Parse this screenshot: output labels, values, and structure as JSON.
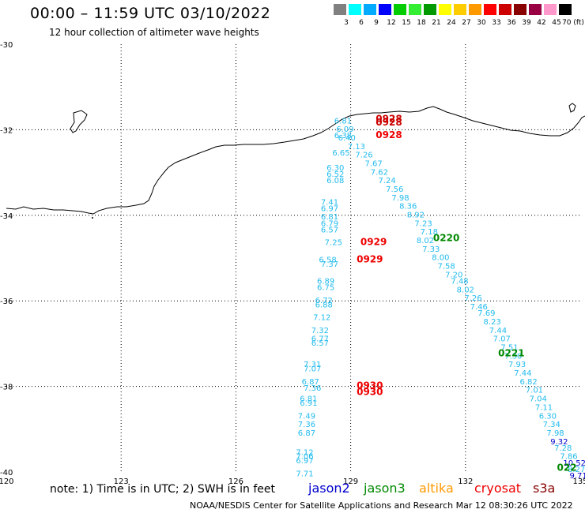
{
  "header": {
    "title": "00:00 – 11:59 UTC 03/10/2022",
    "subtitle": "12 hour collection of altimeter wave heights"
  },
  "legend": {
    "bins": [
      {
        "label": "3",
        "color": "#808080"
      },
      {
        "label": "6",
        "color": "#00ffff"
      },
      {
        "label": "9",
        "color": "#00aaff"
      },
      {
        "label": "12",
        "color": "#0000ff"
      },
      {
        "label": "15",
        "color": "#00cc00"
      },
      {
        "label": "18",
        "color": "#33ee33"
      },
      {
        "label": "21",
        "color": "#009900"
      },
      {
        "label": "24",
        "color": "#ffff00"
      },
      {
        "label": "27",
        "color": "#ffcc00"
      },
      {
        "label": "30",
        "color": "#ff9900"
      },
      {
        "label": "33",
        "color": "#ff0000"
      },
      {
        "label": "36",
        "color": "#cc0000"
      },
      {
        "label": "39",
        "color": "#880000"
      },
      {
        "label": "42",
        "color": "#990044"
      },
      {
        "label": "45",
        "color": "#ff99cc"
      },
      {
        "label": "70 (ft)",
        "color": "#000000"
      }
    ]
  },
  "map": {
    "lon_ticks": [
      "120",
      "123",
      "126",
      "129",
      "132",
      "135"
    ],
    "lat_ticks": [
      "-30",
      "-32",
      "-34",
      "-36",
      "-38",
      "-40"
    ],
    "pass_times": [
      {
        "text": "0928",
        "lon": 130.0,
        "lat": -31.82,
        "color": "#cc0000"
      },
      {
        "text": "0928",
        "lon": 130.0,
        "lat": -31.9,
        "color": "#cc0000"
      },
      {
        "text": "0928",
        "lon": 130.0,
        "lat": -32.2,
        "color": "#ee0000"
      },
      {
        "text": "0929",
        "lon": 129.6,
        "lat": -34.7,
        "color": "#ee0000"
      },
      {
        "text": "0929",
        "lon": 129.5,
        "lat": -35.1,
        "color": "#ee0000"
      },
      {
        "text": "0220",
        "lon": 131.5,
        "lat": -34.6,
        "color": "#008800"
      },
      {
        "text": "0221",
        "lon": 133.2,
        "lat": -37.3,
        "color": "#008800"
      },
      {
        "text": "0930",
        "lon": 129.5,
        "lat": -38.05,
        "color": "#ee0000"
      },
      {
        "text": "0930",
        "lon": 129.5,
        "lat": -38.2,
        "color": "#ee0000"
      },
      {
        "text": "022",
        "lon": 134.65,
        "lat": -39.97,
        "color": "#008800"
      }
    ],
    "wave_heights": [
      {
        "text": "6.81",
        "lon": 128.8,
        "lat": -31.85,
        "color": "#22bbee"
      },
      {
        "text": "6.09",
        "lon": 128.85,
        "lat": -32.05,
        "color": "#22bbee"
      },
      {
        "text": "6.38",
        "lon": 128.8,
        "lat": -32.2,
        "color": "#22bbee"
      },
      {
        "text": "6.40",
        "lon": 128.9,
        "lat": -32.25,
        "color": "#22bbee"
      },
      {
        "text": "7.13",
        "lon": 129.15,
        "lat": -32.45,
        "color": "#22bbee"
      },
      {
        "text": "6.65",
        "lon": 128.75,
        "lat": -32.6,
        "color": "#22bbee"
      },
      {
        "text": "7.26",
        "lon": 129.35,
        "lat": -32.65,
        "color": "#22bbee"
      },
      {
        "text": "7.67",
        "lon": 129.6,
        "lat": -32.85,
        "color": "#22bbee"
      },
      {
        "text": "6.30",
        "lon": 128.6,
        "lat": -32.95,
        "color": "#22bbee"
      },
      {
        "text": "7.62",
        "lon": 129.75,
        "lat": -33.05,
        "color": "#22bbee"
      },
      {
        "text": "6.52",
        "lon": 128.6,
        "lat": -33.1,
        "color": "#22bbee"
      },
      {
        "text": "6.08",
        "lon": 128.6,
        "lat": -33.25,
        "color": "#22bbee"
      },
      {
        "text": "7.24",
        "lon": 129.95,
        "lat": -33.25,
        "color": "#22bbee"
      },
      {
        "text": "7.56",
        "lon": 130.15,
        "lat": -33.45,
        "color": "#22bbee"
      },
      {
        "text": "7.98",
        "lon": 130.3,
        "lat": -33.65,
        "color": "#22bbee"
      },
      {
        "text": "7.41",
        "lon": 128.45,
        "lat": -33.75,
        "color": "#22bbee"
      },
      {
        "text": "8.36",
        "lon": 130.5,
        "lat": -33.85,
        "color": "#22bbee"
      },
      {
        "text": "6.97",
        "lon": 128.45,
        "lat": -33.9,
        "color": "#22bbee"
      },
      {
        "text": "8.92",
        "lon": 130.7,
        "lat": -34.05,
        "color": "#22bbee"
      },
      {
        "text": "6.81",
        "lon": 128.45,
        "lat": -34.1,
        "color": "#22bbee"
      },
      {
        "text": "6.79",
        "lon": 128.45,
        "lat": -34.25,
        "color": "#22bbee"
      },
      {
        "text": "7.23",
        "lon": 130.9,
        "lat": -34.25,
        "color": "#22bbee"
      },
      {
        "text": "6.57",
        "lon": 128.45,
        "lat": -34.4,
        "color": "#22bbee"
      },
      {
        "text": "7.18",
        "lon": 131.05,
        "lat": -34.45,
        "color": "#22bbee"
      },
      {
        "text": "8.02",
        "lon": 130.95,
        "lat": -34.65,
        "color": "#22bbee"
      },
      {
        "text": "7.25",
        "lon": 128.55,
        "lat": -34.7,
        "color": "#22bbee"
      },
      {
        "text": "7.33",
        "lon": 131.1,
        "lat": -34.85,
        "color": "#22bbee"
      },
      {
        "text": "8.00",
        "lon": 131.35,
        "lat": -35.05,
        "color": "#22bbee"
      },
      {
        "text": "6.58",
        "lon": 128.4,
        "lat": -35.1,
        "color": "#22bbee"
      },
      {
        "text": "7.37",
        "lon": 128.45,
        "lat": -35.2,
        "color": "#22bbee"
      },
      {
        "text": "7.58",
        "lon": 131.5,
        "lat": -35.25,
        "color": "#22bbee"
      },
      {
        "text": "7.20",
        "lon": 131.7,
        "lat": -35.45,
        "color": "#22bbee"
      },
      {
        "text": "6.89",
        "lon": 128.35,
        "lat": -35.6,
        "color": "#22bbee"
      },
      {
        "text": "7.48",
        "lon": 131.85,
        "lat": -35.6,
        "color": "#22bbee"
      },
      {
        "text": "6.75",
        "lon": 128.35,
        "lat": -35.75,
        "color": "#22bbee"
      },
      {
        "text": "8.02",
        "lon": 132.0,
        "lat": -35.8,
        "color": "#22bbee"
      },
      {
        "text": "7.26",
        "lon": 132.2,
        "lat": -36.0,
        "color": "#22bbee"
      },
      {
        "text": "6.72",
        "lon": 128.3,
        "lat": -36.05,
        "color": "#22bbee"
      },
      {
        "text": "6.88",
        "lon": 128.3,
        "lat": -36.15,
        "color": "#22bbee"
      },
      {
        "text": "7.46",
        "lon": 132.35,
        "lat": -36.2,
        "color": "#22bbee"
      },
      {
        "text": "7.69",
        "lon": 132.55,
        "lat": -36.35,
        "color": "#22bbee"
      },
      {
        "text": "7.12",
        "lon": 128.25,
        "lat": -36.45,
        "color": "#22bbee"
      },
      {
        "text": "8.23",
        "lon": 132.7,
        "lat": -36.55,
        "color": "#22bbee"
      },
      {
        "text": "7.32",
        "lon": 128.2,
        "lat": -36.75,
        "color": "#22bbee"
      },
      {
        "text": "7.44",
        "lon": 132.85,
        "lat": -36.75,
        "color": "#22bbee"
      },
      {
        "text": "7.07",
        "lon": 132.95,
        "lat": -36.95,
        "color": "#22bbee"
      },
      {
        "text": "6.77",
        "lon": 128.2,
        "lat": -36.95,
        "color": "#22bbee"
      },
      {
        "text": "6.57",
        "lon": 128.2,
        "lat": -37.05,
        "color": "#22bbee"
      },
      {
        "text": "7.51",
        "lon": 133.15,
        "lat": -37.15,
        "color": "#22bbee"
      },
      {
        "text": "7.30",
        "lon": 133.25,
        "lat": -37.35,
        "color": "#22bbee"
      },
      {
        "text": "7.31",
        "lon": 128.0,
        "lat": -37.55,
        "color": "#22bbee"
      },
      {
        "text": "7.93",
        "lon": 133.35,
        "lat": -37.55,
        "color": "#22bbee"
      },
      {
        "text": "7.07",
        "lon": 128.0,
        "lat": -37.65,
        "color": "#22bbee"
      },
      {
        "text": "7.44",
        "lon": 133.5,
        "lat": -37.75,
        "color": "#22bbee"
      },
      {
        "text": "6.87",
        "lon": 127.95,
        "lat": -37.95,
        "color": "#22bbee"
      },
      {
        "text": "6.82",
        "lon": 133.65,
        "lat": -37.95,
        "color": "#22bbee"
      },
      {
        "text": "7.36",
        "lon": 128.0,
        "lat": -38.1,
        "color": "#22bbee"
      },
      {
        "text": "7.01",
        "lon": 133.8,
        "lat": -38.15,
        "color": "#22bbee"
      },
      {
        "text": "6.81",
        "lon": 127.9,
        "lat": -38.35,
        "color": "#22bbee"
      },
      {
        "text": "7.04",
        "lon": 133.9,
        "lat": -38.35,
        "color": "#22bbee"
      },
      {
        "text": "6.91",
        "lon": 127.9,
        "lat": -38.45,
        "color": "#22bbee"
      },
      {
        "text": "7.11",
        "lon": 134.05,
        "lat": -38.55,
        "color": "#22bbee"
      },
      {
        "text": "7.49",
        "lon": 127.85,
        "lat": -38.75,
        "color": "#22bbee"
      },
      {
        "text": "6.30",
        "lon": 134.15,
        "lat": -38.75,
        "color": "#22bbee"
      },
      {
        "text": "7.36",
        "lon": 127.85,
        "lat": -38.95,
        "color": "#22bbee"
      },
      {
        "text": "7.34",
        "lon": 134.25,
        "lat": -38.95,
        "color": "#22bbee"
      },
      {
        "text": "6.87",
        "lon": 127.85,
        "lat": -39.15,
        "color": "#22bbee"
      },
      {
        "text": "7.98",
        "lon": 134.35,
        "lat": -39.15,
        "color": "#22bbee"
      },
      {
        "text": "9.32",
        "lon": 134.45,
        "lat": -39.35,
        "color": "#0000cc"
      },
      {
        "text": "7.28",
        "lon": 134.55,
        "lat": -39.5,
        "color": "#22bbee"
      },
      {
        "text": "7.12",
        "lon": 127.8,
        "lat": -39.6,
        "color": "#22bbee"
      },
      {
        "text": "7.86",
        "lon": 134.7,
        "lat": -39.7,
        "color": "#22bbee"
      },
      {
        "text": "7.06",
        "lon": 127.8,
        "lat": -39.7,
        "color": "#22bbee"
      },
      {
        "text": "6.97",
        "lon": 127.8,
        "lat": -39.8,
        "color": "#22bbee"
      },
      {
        "text": "10.52",
        "lon": 134.85,
        "lat": -39.85,
        "color": "#0000cc"
      },
      {
        "text": "8.27",
        "lon": 134.9,
        "lat": -40.0,
        "color": "#22bbee"
      },
      {
        "text": "7.71",
        "lon": 127.8,
        "lat": -40.1,
        "color": "#22bbee"
      },
      {
        "text": "9.71",
        "lon": 134.95,
        "lat": -40.15,
        "color": "#0000cc"
      }
    ]
  },
  "note": "note: 1) Time is in UTC; 2) SWH is in feet",
  "satellites": [
    {
      "name": "jason2",
      "color": "#0000cc"
    },
    {
      "name": "jason3",
      "color": "#008800"
    },
    {
      "name": "altika",
      "color": "#ff9900"
    },
    {
      "name": "cryosat",
      "color": "#ee0000"
    },
    {
      "name": "s3a",
      "color": "#880000"
    }
  ],
  "footer": "NOAA/NESDIS Center for Satellite Applications and Research   Mar 12 08:30:26 UTC 2022"
}
